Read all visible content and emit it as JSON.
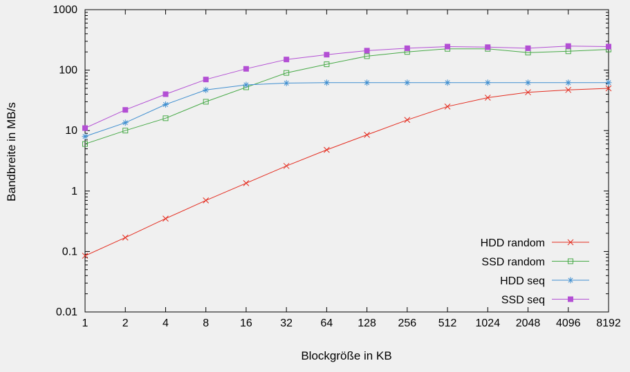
{
  "chart": {
    "background_color": "#f0f0f0",
    "border_color": "#000000"
  },
  "chart_data": {
    "type": "line",
    "title": "",
    "xlabel": "Blockgröße in KB",
    "ylabel": "Bandbreite in MB/s",
    "x_scale": "log2",
    "y_scale": "log10",
    "xlim": [
      1,
      8192
    ],
    "ylim": [
      0.01,
      1000
    ],
    "grid": false,
    "legend_position": "inside-bottom-right",
    "x": [
      1,
      2,
      4,
      8,
      16,
      32,
      64,
      128,
      256,
      512,
      1024,
      2048,
      4096,
      8192
    ],
    "x_tick_labels": [
      "1",
      "2",
      "4",
      "8",
      "16",
      "32",
      "64",
      "128",
      "256",
      "512",
      "1024",
      "2048",
      "4096",
      "8192"
    ],
    "y_ticks": [
      0.01,
      0.1,
      1,
      10,
      100,
      1000
    ],
    "y_tick_labels": [
      "0.01",
      "0.1",
      "1",
      "10",
      "100",
      "1000"
    ],
    "series": [
      {
        "name": "HDD random",
        "color": "#e42b1e",
        "marker": "x",
        "values": [
          0.085,
          0.17,
          0.35,
          0.7,
          1.35,
          2.6,
          4.8,
          8.5,
          15,
          25,
          35,
          43,
          47,
          50
        ]
      },
      {
        "name": "SSD random",
        "color": "#46a946",
        "marker": "open-square",
        "values": [
          6,
          10,
          16,
          30,
          52,
          90,
          125,
          170,
          200,
          225,
          225,
          195,
          205,
          220
        ]
      },
      {
        "name": "HDD seq",
        "color": "#3e8ed0",
        "marker": "asterisk",
        "values": [
          8,
          13.5,
          27,
          47,
          57,
          61,
          62,
          62,
          62,
          62,
          62,
          62,
          62,
          62
        ]
      },
      {
        "name": "SSD seq",
        "color": "#b34fd4",
        "marker": "filled-square",
        "values": [
          11,
          22,
          40,
          70,
          105,
          150,
          180,
          210,
          230,
          245,
          240,
          230,
          250,
          245
        ]
      }
    ]
  }
}
